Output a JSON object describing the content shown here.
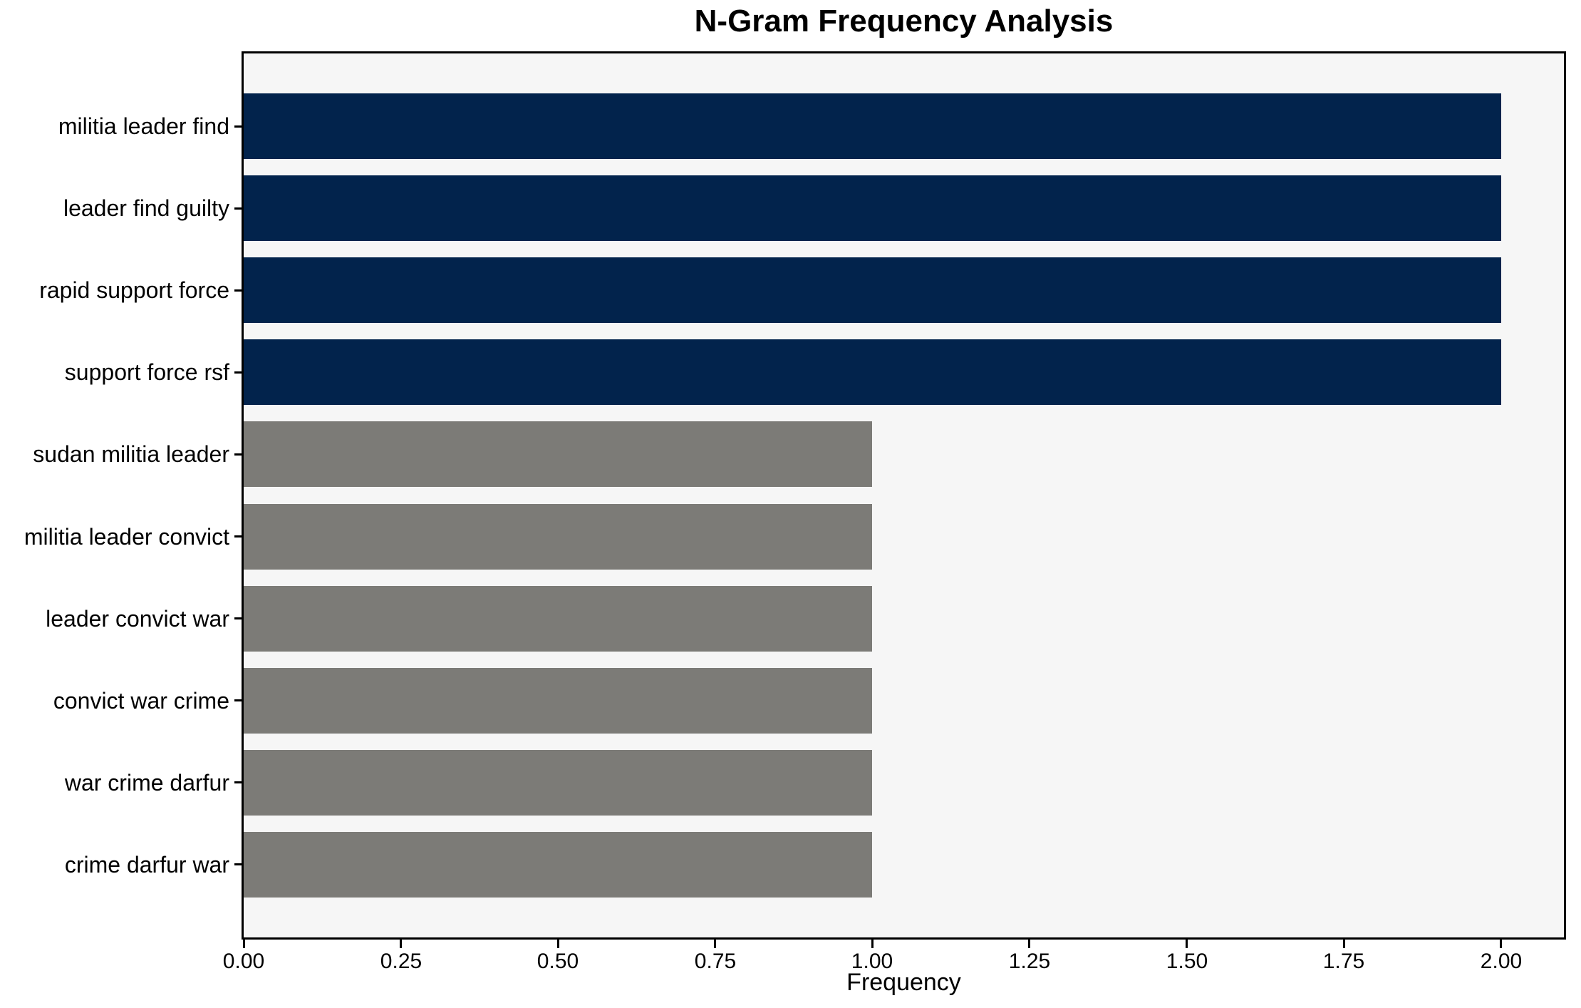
{
  "chart_data": {
    "type": "bar",
    "orientation": "horizontal",
    "title": "N-Gram Frequency Analysis",
    "xlabel": "Frequency",
    "ylabel": "",
    "categories": [
      "militia leader find",
      "leader find guilty",
      "rapid support force",
      "support force rsf",
      "sudan militia leader",
      "militia leader convict",
      "leader convict war",
      "convict war crime",
      "war crime darfur",
      "crime darfur war"
    ],
    "values": [
      2,
      2,
      2,
      2,
      1,
      1,
      1,
      1,
      1,
      1
    ],
    "bar_colors": [
      "#02234c",
      "#02234c",
      "#02234c",
      "#02234c",
      "#7c7b77",
      "#7c7b77",
      "#7c7b77",
      "#7c7b77",
      "#7c7b77",
      "#7c7b77"
    ],
    "xlim": [
      0,
      2.1
    ],
    "xticks": [
      {
        "value": 0.0,
        "label": "0.00"
      },
      {
        "value": 0.25,
        "label": "0.25"
      },
      {
        "value": 0.5,
        "label": "0.50"
      },
      {
        "value": 0.75,
        "label": "0.75"
      },
      {
        "value": 1.0,
        "label": "1.00"
      },
      {
        "value": 1.25,
        "label": "1.25"
      },
      {
        "value": 1.5,
        "label": "1.50"
      },
      {
        "value": 1.75,
        "label": "1.75"
      },
      {
        "value": 2.0,
        "label": "2.00"
      }
    ],
    "grid": false,
    "legend": null,
    "colors": {
      "bar_high_frequency": "#02234c",
      "bar_low_frequency": "#7c7b77",
      "plot_background": "#f6f6f6",
      "figure_background": "#ffffff",
      "spine": "#000000",
      "text": "#000000"
    }
  }
}
